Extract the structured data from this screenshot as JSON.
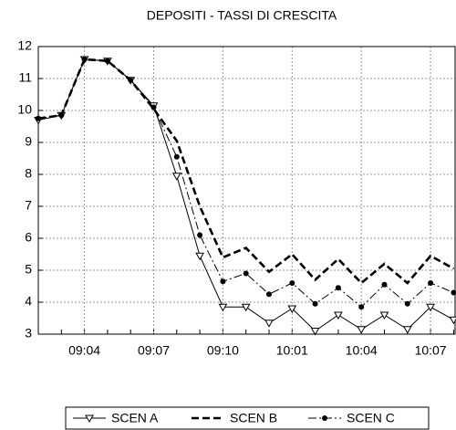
{
  "chart_data": {
    "type": "line",
    "title": "DEPOSITI  - TASSI DI CRESCITA",
    "categories": [
      null,
      null,
      "09:04",
      null,
      null,
      "09:07",
      null,
      null,
      "09:10",
      null,
      null,
      "10:01",
      null,
      null,
      "10:04",
      null,
      null,
      "10:07",
      null
    ],
    "series": [
      {
        "name": "SCEN A",
        "color": "#000000",
        "line_style": "solid",
        "marker": "triangle-down",
        "values": [
          9.7,
          9.85,
          11.6,
          11.55,
          10.95,
          10.15,
          7.95,
          5.45,
          3.85,
          3.85,
          3.35,
          3.8,
          3.1,
          3.6,
          3.15,
          3.6,
          3.15,
          3.85,
          3.45
        ]
      },
      {
        "name": "SCEN B",
        "color": "#000000",
        "line_style": "dashed",
        "marker": "none",
        "values": [
          9.75,
          9.85,
          11.6,
          11.55,
          10.95,
          10.05,
          9.05,
          7.0,
          5.4,
          5.7,
          4.95,
          5.5,
          4.7,
          5.35,
          4.6,
          5.2,
          4.6,
          5.45,
          5.05
        ]
      },
      {
        "name": "SCEN C",
        "color": "#000000",
        "line_style": "dash-dot",
        "marker": "circle",
        "values": [
          9.75,
          9.85,
          11.6,
          11.55,
          10.95,
          10.1,
          8.55,
          6.1,
          4.65,
          4.9,
          4.25,
          4.6,
          3.95,
          4.45,
          3.85,
          4.55,
          3.95,
          4.6,
          4.3
        ]
      }
    ],
    "ylim": [
      3,
      12
    ],
    "yticks": [
      3,
      4,
      5,
      6,
      7,
      8,
      9,
      10,
      11,
      12
    ],
    "grid": true,
    "legend": "bottom"
  }
}
